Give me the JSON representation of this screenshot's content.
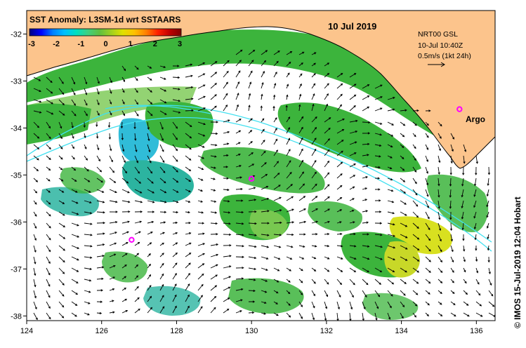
{
  "title": "SST Anomaly: L3SM-1d wrt SSTAARS",
  "date_label": "10 Jul 2019",
  "annotation": {
    "product": "NRT00 GSL",
    "valid_time": "10-Jul 10:40Z",
    "scale_label": "0.5m/s (1kt 24h)"
  },
  "argo_label": "Argo",
  "credit": "© IMOS 15-Jul-2019 12:04 Hobart",
  "colorbar": {
    "ticks": [
      "-3",
      "-2",
      "-1",
      "0",
      "1",
      "2",
      "3"
    ],
    "colors": [
      "#000080",
      "#0000ff",
      "#0080ff",
      "#00c0ff",
      "#00e0c0",
      "#40d080",
      "#60c040",
      "#a0d020",
      "#e0e000",
      "#ffc000",
      "#ff8000",
      "#ff2000",
      "#c00000",
      "#800000"
    ]
  },
  "axes": {
    "x_ticks": [
      "124",
      "126",
      "128",
      "130",
      "132",
      "134",
      "136"
    ],
    "y_ticks": [
      "-32",
      "-33",
      "-34",
      "-35",
      "-36",
      "-37",
      "-38"
    ],
    "x_range": [
      124,
      136.5
    ],
    "y_range": [
      -38.1,
      -31.5
    ]
  },
  "colors": {
    "land": "#fcc48c",
    "sst_green": "#3cb43c",
    "sst_light_green": "#78c850",
    "sst_teal": "#2cb4a0",
    "sst_cyan": "#30bcd8",
    "sst_yellow": "#d8e020",
    "contour": "#40e0f0",
    "argo": "#ff00ff",
    "frame": "#000000"
  },
  "argo_floats": [
    {
      "lon": 130.0,
      "lat": -35.08
    },
    {
      "lon": 126.8,
      "lat": -36.38
    },
    {
      "lon": 135.55,
      "lat": -33.6
    }
  ]
}
